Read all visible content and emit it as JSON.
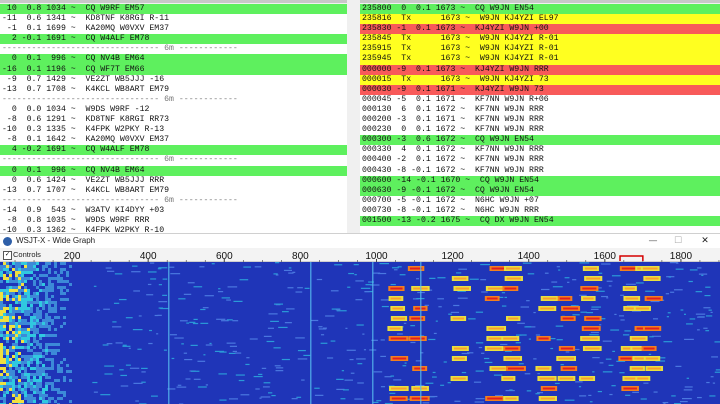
{
  "band_activity": [
    {
      "text": " 10  0.8 1034 ~  CQ W9RF EM57",
      "hl": "green"
    },
    {
      "text": "-11  0.6 1341 ~  KD8TNF K8RGI R-11",
      "hl": ""
    },
    {
      "text": " -1  0.1 1699 ~  KA20MQ W0VXV EM37",
      "hl": ""
    },
    {
      "text": "  2 -0.1 1691 ~  CQ W4ALF EM78",
      "hl": "green"
    },
    {
      "text": "-------------------------------- 6m ------------",
      "hl": "sep"
    },
    {
      "text": "  0  0.1  996 ~  CQ NV4B EM64",
      "hl": "green"
    },
    {
      "text": "-16  0.1 1196 ~  CQ WF7T EM66",
      "hl": "green"
    },
    {
      "text": " -9  0.7 1429 ~  VE2ZT WB5JJJ -16",
      "hl": ""
    },
    {
      "text": "-13  0.7 1708 ~  K4KCL WB8ART EM79",
      "hl": ""
    },
    {
      "text": "-------------------------------- 6m ------------",
      "hl": "sep"
    },
    {
      "text": "  0  0.0 1034 ~  W9DS W9RF -12",
      "hl": ""
    },
    {
      "text": " -8  0.6 1291 ~  KD8TNF K8RGI RR73",
      "hl": ""
    },
    {
      "text": "-10  0.3 1335 ~  K4FPK W2PKY R-13",
      "hl": ""
    },
    {
      "text": " -8  0.1 1642 ~  KA20MQ W0VXV EM37",
      "hl": ""
    },
    {
      "text": "  4 -0.2 1691 ~  CQ W4ALF EM78",
      "hl": "green"
    },
    {
      "text": "-------------------------------- 6m ------------",
      "hl": "sep"
    },
    {
      "text": "  0  0.1  996 ~  CQ NV4B EM64",
      "hl": "green"
    },
    {
      "text": "  0  0.6 1424 ~  VE2ZT WB5JJJ RRR",
      "hl": ""
    },
    {
      "text": "-13  0.7 1707 ~  K4KCL WB8ART EM79",
      "hl": ""
    },
    {
      "text": "-------------------------------- 6m ------------",
      "hl": "sep"
    },
    {
      "text": "-14  0.9  543 ~  W3ATV KI4DYY +03",
      "hl": ""
    },
    {
      "text": " -8  0.8 1035 ~  W9DS W9RF RRR",
      "hl": ""
    },
    {
      "text": "-10  0.3 1362 ~  K4FPK W2PKY R-10",
      "hl": ""
    },
    {
      "text": " -7  0.1 1644 ~  KA20MQ W0VXV EM37",
      "hl": ""
    }
  ],
  "rx_frequency": [
    {
      "text": "235800  0  0.1 1673 ~  CQ W9JN EN54",
      "hl": "green"
    },
    {
      "text": "235816  Tx      1673 ~  W9JN KJ4YZI EL97",
      "hl": "yellow"
    },
    {
      "text": "235830 -1  0.1 1673 ~  KJ4YZI W9JN +00",
      "hl": "red"
    },
    {
      "text": "235845  Tx      1673 ~  W9JN KJ4YZI R-01",
      "hl": "yellow"
    },
    {
      "text": "235915  Tx      1673 ~  W9JN KJ4YZI R-01",
      "hl": "yellow"
    },
    {
      "text": "235945  Tx      1673 ~  W9JN KJ4YZI R-01",
      "hl": "yellow"
    },
    {
      "text": "000000 -9  0.1 1673 ~  KJ4YZI W9JN RRR",
      "hl": "red"
    },
    {
      "text": "000015  Tx      1673 ~  W9JN KJ4YZI 73",
      "hl": "yellow"
    },
    {
      "text": "000030 -9  0.1 1671 ~  KJ4YZI W9JN 73",
      "hl": "red"
    },
    {
      "text": "000045 -5  0.1 1671 ~  KF7NN W9JN R+06",
      "hl": ""
    },
    {
      "text": "000130  6  0.1 1672 ~  KF7NN W9JN RRR",
      "hl": ""
    },
    {
      "text": "000200 -3  0.1 1671 ~  KF7NN W9JN RRR",
      "hl": ""
    },
    {
      "text": "000230  0  0.1 1672 ~  KF7NN W9JN RRR",
      "hl": ""
    },
    {
      "text": "000300 -3  0.6 1672 ~  CQ W9JN EN54",
      "hl": "green"
    },
    {
      "text": "000330  4  0.1 1672 ~  KF7NN W9JN RRR",
      "hl": ""
    },
    {
      "text": "000400 -2  0.1 1672 ~  KF7NN W9JN RRR",
      "hl": ""
    },
    {
      "text": "000430 -8 -0.1 1672 ~  KF7NN W9JN RRR",
      "hl": ""
    },
    {
      "text": "000600 -14 -0.1 1670 ~  CQ W9JN EN54",
      "hl": "green"
    },
    {
      "text": "000630 -9 -0.1 1672 ~  CQ W9JN EN54",
      "hl": "green"
    },
    {
      "text": "000700 -5 -0.1 1672 ~  N6HC W9JN +07",
      "hl": ""
    },
    {
      "text": "000730 -8 -0.1 1672 ~  N6HC W9JN RRR",
      "hl": ""
    },
    {
      "text": "001500 -13 -0.2 1675 ~  CQ DX W9JN EN54",
      "hl": "green"
    }
  ],
  "wide_graph": {
    "title": "WSJT-X - Wide Graph",
    "controls_label": "Controls",
    "controls_checked": "✓",
    "buttons": {
      "minimize": "—",
      "maximize": "☐",
      "close": "✕"
    },
    "freq_min": 0,
    "freq_max": 1900,
    "ticks": [
      "200",
      "400",
      "600",
      "800",
      "1000",
      "1200",
      "1400",
      "1600",
      "1800"
    ]
  },
  "colors": {
    "green": "#5ef05e",
    "yellow": "#ffff20",
    "red": "#f85a5a",
    "waterfall_bg": "#1f35b8"
  }
}
